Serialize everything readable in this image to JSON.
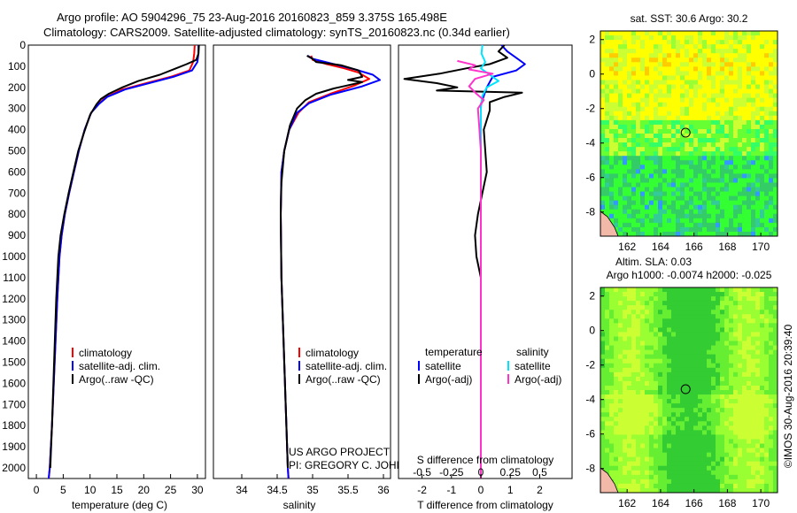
{
  "header": {
    "line1": "Argo profile: AO 5904296_75 23-Aug-2016 20160823_859 3.375S 165.498E",
    "line2": "Climatology: CARS2009. Satellite-adjusted climatology: synTS_20160823.nc (0.34d earlier)"
  },
  "colors": {
    "climatology": "#ff0000",
    "satellite": "#0000ff",
    "argo": "#000000",
    "sat_salinity": "#00e5ff",
    "argo_salinity": "#ff33cc"
  },
  "depth_axis": {
    "ylim": [
      0,
      2050
    ],
    "ticks": [
      "0",
      "100",
      "200",
      "300",
      "400",
      "500",
      "600",
      "700",
      "800",
      "900",
      "1000",
      "1100",
      "1200",
      "1300",
      "1400",
      "1500",
      "1600",
      "1700",
      "1800",
      "1900",
      "2000"
    ]
  },
  "chart_data": [
    {
      "type": "line",
      "id": "temperature",
      "xlabel": "temperature (deg C)",
      "xlim": [
        -1.5,
        31.5
      ],
      "ylim": [
        0,
        2050
      ],
      "xticks": [
        "0",
        "5",
        "10",
        "15",
        "20",
        "25",
        "30"
      ],
      "legend": [
        "climatology",
        "satellite-adj. clim.",
        "Argo(..raw -QC)"
      ],
      "series": [
        {
          "name": "climatology",
          "color": "#ff0000",
          "points": [
            [
              29.5,
              0
            ],
            [
              29.4,
              40
            ],
            [
              29.2,
              80
            ],
            [
              28.5,
              120
            ],
            [
              25,
              150
            ],
            [
              20.5,
              180
            ],
            [
              16,
              210
            ],
            [
              13,
              245
            ],
            [
              11.5,
              280
            ],
            [
              10.2,
              320
            ],
            [
              9,
              400
            ],
            [
              7.9,
              500
            ],
            [
              7,
              600
            ],
            [
              6.1,
              700
            ],
            [
              5.3,
              800
            ],
            [
              4.7,
              900
            ],
            [
              4.3,
              1000
            ],
            [
              3.9,
              1200
            ],
            [
              3.4,
              1500
            ],
            [
              2.9,
              1800
            ],
            [
              2.5,
              2000
            ],
            [
              2.3,
              2050
            ]
          ]
        },
        {
          "name": "satellite-adj. clim.",
          "color": "#0000ff",
          "points": [
            [
              30.2,
              0
            ],
            [
              30.2,
              40
            ],
            [
              30,
              80
            ],
            [
              29,
              120
            ],
            [
              25.5,
              150
            ],
            [
              21,
              180
            ],
            [
              16.5,
              210
            ],
            [
              13.2,
              245
            ],
            [
              11.6,
              280
            ],
            [
              10.2,
              320
            ],
            [
              9,
              400
            ],
            [
              7.9,
              500
            ],
            [
              7,
              600
            ],
            [
              6.1,
              700
            ],
            [
              5.3,
              800
            ],
            [
              4.7,
              900
            ],
            [
              4.3,
              1000
            ],
            [
              3.9,
              1200
            ],
            [
              3.4,
              1500
            ],
            [
              2.9,
              1800
            ],
            [
              2.5,
              2000
            ],
            [
              2.3,
              2050
            ]
          ]
        },
        {
          "name": "Argo(..raw -QC)",
          "color": "#000000",
          "points": [
            [
              30.3,
              0
            ],
            [
              30.2,
              40
            ],
            [
              29.8,
              70
            ],
            [
              28,
              90
            ],
            [
              26,
              110
            ],
            [
              23,
              140
            ],
            [
              19,
              170
            ],
            [
              16,
              200
            ],
            [
              13.5,
              230
            ],
            [
              12,
              255
            ],
            [
              11.2,
              280
            ],
            [
              10,
              330
            ],
            [
              8.8,
              420
            ],
            [
              7.8,
              500
            ],
            [
              6.9,
              600
            ],
            [
              6,
              700
            ],
            [
              5.2,
              800
            ],
            [
              4.5,
              900
            ],
            [
              4.1,
              1000
            ],
            [
              3.7,
              1200
            ],
            [
              3.3,
              1500
            ],
            [
              2.9,
              1800
            ],
            [
              2.6,
              2000
            ]
          ]
        }
      ]
    },
    {
      "type": "line",
      "id": "salinity",
      "xlabel": "salinity",
      "xlim": [
        33.6,
        36.1
      ],
      "ylim": [
        0,
        2050
      ],
      "xticks": [
        "34",
        "34.5",
        "35",
        "35.5",
        "36"
      ],
      "legend": [
        "climatology",
        "satellite-adj. clim.",
        "Argo(..raw -QC)"
      ],
      "series": [
        {
          "name": "climatology",
          "color": "#ff0000",
          "points": [
            [
              34.98,
              50
            ],
            [
              35.0,
              70
            ],
            [
              35.2,
              90
            ],
            [
              35.45,
              110
            ],
            [
              35.65,
              130
            ],
            [
              35.8,
              160
            ],
            [
              35.6,
              190
            ],
            [
              35.25,
              230
            ],
            [
              34.95,
              270
            ],
            [
              34.8,
              320
            ],
            [
              34.67,
              400
            ],
            [
              34.6,
              500
            ],
            [
              34.56,
              600
            ],
            [
              34.55,
              800
            ],
            [
              34.56,
              1100
            ],
            [
              34.6,
              1500
            ],
            [
              34.63,
              1800
            ],
            [
              34.65,
              2000
            ],
            [
              34.66,
              2050
            ]
          ]
        },
        {
          "name": "satellite-adj. clim.",
          "color": "#0000ff",
          "points": [
            [
              34.93,
              50
            ],
            [
              35.0,
              65
            ],
            [
              35.3,
              90
            ],
            [
              35.6,
              115
            ],
            [
              35.85,
              140
            ],
            [
              35.95,
              165
            ],
            [
              35.7,
              195
            ],
            [
              35.25,
              235
            ],
            [
              34.95,
              275
            ],
            [
              34.78,
              320
            ],
            [
              34.67,
              400
            ],
            [
              34.6,
              500
            ],
            [
              34.56,
              600
            ],
            [
              34.55,
              800
            ],
            [
              34.56,
              1100
            ],
            [
              34.6,
              1500
            ],
            [
              34.63,
              1800
            ],
            [
              34.65,
              2000
            ],
            [
              34.66,
              2050
            ]
          ]
        },
        {
          "name": "Argo(..raw -QC)",
          "color": "#000000",
          "points": [
            [
              34.92,
              50
            ],
            [
              35.0,
              65
            ],
            [
              35.05,
              80
            ],
            [
              35.4,
              95
            ],
            [
              35.5,
              105
            ],
            [
              35.65,
              120
            ],
            [
              35.7,
              150
            ],
            [
              35.5,
              165
            ],
            [
              35.7,
              175
            ],
            [
              35.3,
              205
            ],
            [
              35.05,
              230
            ],
            [
              34.9,
              260
            ],
            [
              34.78,
              300
            ],
            [
              34.68,
              380
            ],
            [
              34.6,
              500
            ],
            [
              34.56,
              650
            ],
            [
              34.55,
              800
            ],
            [
              34.56,
              1100
            ],
            [
              34.6,
              1500
            ],
            [
              34.63,
              1800
            ],
            [
              34.65,
              2000
            ]
          ]
        }
      ]
    },
    {
      "type": "line",
      "id": "difference",
      "xlabel": "T difference from climatology",
      "top_label": "S difference from climatology",
      "xlim": [
        -2.8,
        3.1
      ],
      "ylim": [
        0,
        2050
      ],
      "xticks": [
        "-2",
        "-1",
        "0",
        "1",
        "2"
      ],
      "sticks": [
        "-0.5",
        "-0.25",
        "0",
        "0.25",
        "0.5"
      ],
      "legend": {
        "temperature_title": "temperature",
        "salinity_title": "salinity",
        "items": [
          "satellite",
          "Argo(-adj)",
          "satellite",
          "Argo(-adj)"
        ]
      },
      "series": [
        {
          "name": "satellite",
          "color": "#0000ff",
          "points": [
            [
              0.7,
              0
            ],
            [
              0.9,
              30
            ],
            [
              1.2,
              60
            ],
            [
              1.5,
              90
            ],
            [
              1.2,
              120
            ],
            [
              0.4,
              150
            ],
            [
              0.2,
              200
            ],
            [
              0,
              280
            ],
            [
              0,
              2050
            ]
          ]
        },
        {
          "name": "Argo(-adj)",
          "color": "#000000",
          "points": [
            [
              0.8,
              0
            ],
            [
              0.6,
              30
            ],
            [
              0.9,
              60
            ],
            [
              0.3,
              90
            ],
            [
              -0.5,
              110
            ],
            [
              -1.4,
              135
            ],
            [
              -2.6,
              160
            ],
            [
              -1.5,
              180
            ],
            [
              -0.8,
              200
            ],
            [
              -1.5,
              215
            ],
            [
              1.4,
              225
            ],
            [
              0.8,
              245
            ],
            [
              0.3,
              270
            ],
            [
              0.3,
              310
            ],
            [
              0.1,
              400
            ],
            [
              0.2,
              600
            ],
            [
              -0.1,
              800
            ],
            [
              -0.2,
              900
            ],
            [
              -0.15,
              1000
            ],
            [
              0,
              1100
            ],
            [
              0,
              2050
            ]
          ]
        },
        {
          "name": "satellite",
          "color": "#00e5ff",
          "points": [
            [
              0.05,
              0
            ],
            [
              0.02,
              40
            ],
            [
              0.15,
              80
            ],
            [
              0.0,
              110
            ],
            [
              0.3,
              140
            ],
            [
              0.6,
              170
            ],
            [
              0.2,
              200
            ],
            [
              0.05,
              240
            ],
            [
              0,
              300
            ],
            [
              0,
              2050
            ]
          ]
        },
        {
          "name": "Argo(-adj)",
          "color": "#ff33cc",
          "points": [
            [
              -0.8,
              75
            ],
            [
              -0.2,
              95
            ],
            [
              -0.4,
              115
            ],
            [
              0.4,
              135
            ],
            [
              -0.2,
              160
            ],
            [
              -0.4,
              195
            ],
            [
              -0.15,
              230
            ],
            [
              0.1,
              260
            ],
            [
              -0.1,
              300
            ],
            [
              -0.05,
              400
            ],
            [
              0,
              500
            ],
            [
              0,
              2050
            ]
          ]
        }
      ]
    },
    {
      "type": "heatmap",
      "id": "sst_map",
      "title": "sat. SST: 30.6 Argo: 30.2",
      "xlim": [
        160.4,
        171
      ],
      "ylim": [
        -9.4,
        2.5
      ],
      "xticks": [
        "162",
        "164",
        "166",
        "168",
        "170"
      ],
      "yticks": [
        "2",
        "0",
        "-2",
        "-4",
        "-6",
        "-8"
      ],
      "marker": [
        165.5,
        -3.4
      ]
    },
    {
      "type": "heatmap",
      "id": "sla_map",
      "title1": "Altim. SLA: 0.03",
      "title2": "Argo h1000: -0.0074 h2000: -0.025",
      "xlim": [
        160.4,
        171
      ],
      "ylim": [
        -9.4,
        2.5
      ],
      "xticks": [
        "162",
        "164",
        "166",
        "168",
        "170"
      ],
      "yticks": [
        "2",
        "0",
        "-2",
        "-4",
        "-6",
        "-8"
      ],
      "marker": [
        165.5,
        -3.4
      ]
    }
  ],
  "footer": {
    "project": "US ARGO PROJECT",
    "pi": "PI: GREGORY C. JOHNSON",
    "stamp": "©IMOS 30-Aug-2016 20:39:40"
  }
}
